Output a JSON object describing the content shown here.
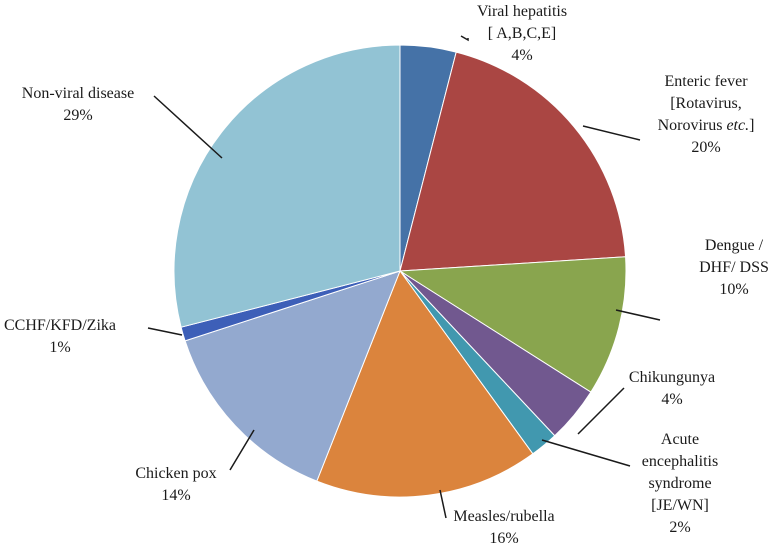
{
  "chart_data": {
    "type": "pie",
    "title": "",
    "slices": [
      {
        "label_lines": [
          "Viral hepatitis",
          "[ A,B,C,E]"
        ],
        "value": 4,
        "value_label": "4%",
        "color": "#4572a7"
      },
      {
        "label_lines": [
          "Enteric fever",
          "[Rotavirus,",
          "Norovirus etc.]"
        ],
        "value": 20,
        "value_label": "20%",
        "color": "#aa4643"
      },
      {
        "label_lines": [
          "Dengue /",
          "DHF/ DSS"
        ],
        "value": 10,
        "value_label": "10%",
        "color": "#89a54e"
      },
      {
        "label_lines": [
          "Chikungunya"
        ],
        "value": 4,
        "value_label": "4%",
        "color": "#71588f"
      },
      {
        "label_lines": [
          "Acute",
          "encephalitis",
          "syndrome",
          "[JE/WN]"
        ],
        "value": 2,
        "value_label": "2%",
        "color": "#4198af"
      },
      {
        "label_lines": [
          "Measles/rubella"
        ],
        "value": 16,
        "value_label": "16%",
        "color": "#db843d"
      },
      {
        "label_lines": [
          "Chicken pox"
        ],
        "value": 14,
        "value_label": "14%",
        "color": "#93a9cf"
      },
      {
        "label_lines": [
          "CCHF/KFD/Zika"
        ],
        "value": 1,
        "value_label": "1%",
        "color": "#3d5fb8"
      },
      {
        "label_lines": [
          "Non-viral disease"
        ],
        "value": 29,
        "value_label": "29%",
        "color": "#92c3d4"
      }
    ]
  }
}
